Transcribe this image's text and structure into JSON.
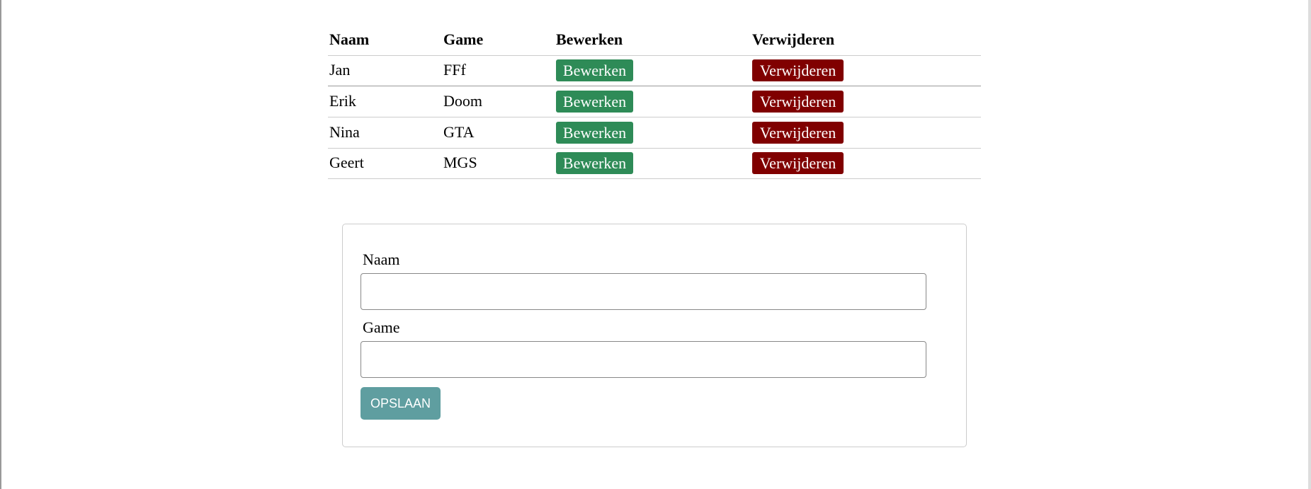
{
  "table": {
    "header": [
      "Naam",
      "Game",
      "Bewerken",
      "Verwijderen"
    ],
    "rows": [
      [
        "Jan",
        "FFf",
        "Bewerken",
        "Verwijderen"
      ],
      [
        "Erik",
        "Doom",
        "Bewerken",
        "Verwijderen"
      ],
      [
        "Nina",
        "GTA",
        "Bewerken",
        "Verwijderen"
      ],
      [
        "Geert",
        "MGS",
        "Bewerken",
        "Verwijderen"
      ]
    ]
  },
  "form": {
    "fields": [
      "Naam",
      "Game"
    ],
    "submit": "OPSLAAN"
  }
}
